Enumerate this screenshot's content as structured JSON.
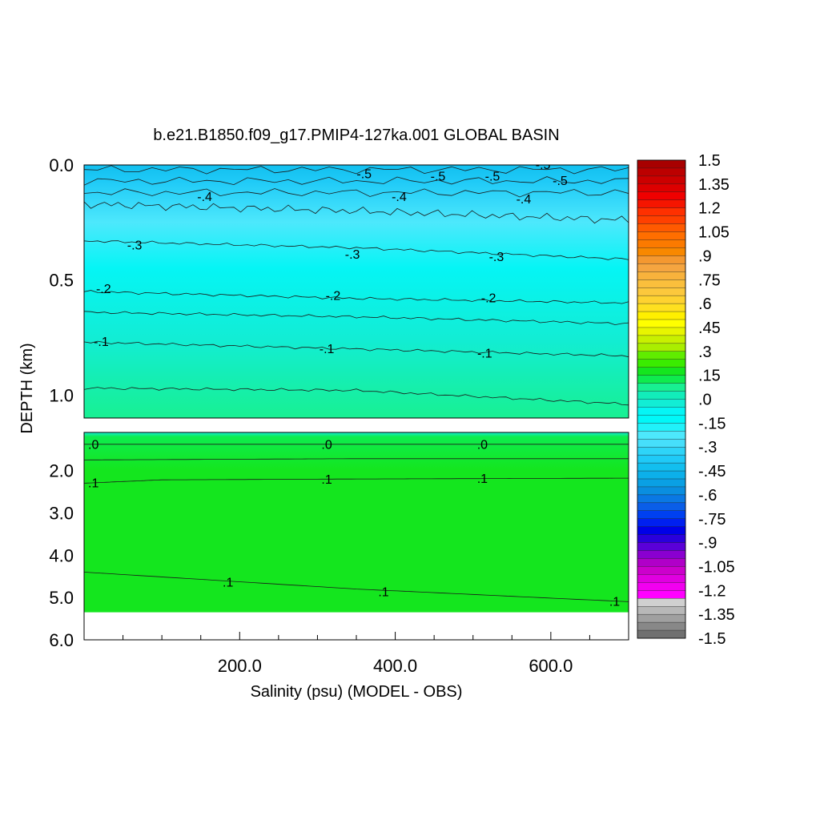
{
  "chart_data": {
    "type": "heatmap",
    "title": "b.e21.B1850.f09_g17.PMIP4-127ka.001 GLOBAL BASIN",
    "xlabel": "Salinity (psu) (MODEL - OBS)",
    "ylabel": "DEPTH (km)",
    "xlim": [
      0,
      700
    ],
    "x_ticks": [
      200,
      400,
      600
    ],
    "x_tick_labels": [
      "200.0",
      "400.0",
      "600.0"
    ],
    "upper_panel": {
      "ylim": [
        0,
        1.1
      ],
      "y_ticks": [
        0,
        0.5,
        1.0
      ],
      "y_tick_labels": [
        "0.0",
        "0.5",
        "1.0"
      ]
    },
    "lower_panel": {
      "ylim": [
        1.1,
        6.0
      ],
      "y_ticks": [
        2,
        3,
        4,
        5,
        6
      ],
      "y_tick_labels": [
        "2.0",
        "3.0",
        "4.0",
        "5.0",
        "6.0"
      ],
      "data_bottom_km": 5.35
    },
    "contours": [
      {
        "label": "-.5",
        "level": -0.5,
        "panel": "upper",
        "points": [
          [
            0,
            0.02
          ],
          [
            700,
            0.02
          ]
        ],
        "label_at": [
          [
            360,
            0.04
          ],
          [
            455,
            0.05
          ],
          [
            525,
            0.05
          ],
          [
            590,
            0.0
          ]
        ]
      },
      {
        "label": "-.5",
        "level": -0.5,
        "panel": "upper",
        "points": [
          [
            0,
            0.07
          ],
          [
            700,
            0.07
          ]
        ],
        "label_at": [
          [
            612,
            0.07
          ]
        ]
      },
      {
        "label": "-.4",
        "level": -0.4,
        "panel": "upper",
        "points": [
          [
            0,
            0.12
          ],
          [
            700,
            0.12
          ]
        ],
        "label_at": [
          [
            155,
            0.14
          ],
          [
            405,
            0.14
          ],
          [
            565,
            0.15
          ]
        ]
      },
      {
        "label": "-.4",
        "level": -0.4,
        "panel": "upper",
        "points": [
          [
            0,
            0.17
          ],
          [
            350,
            0.2
          ],
          [
            700,
            0.24
          ]
        ],
        "label_at": []
      },
      {
        "label": "-.3",
        "level": -0.3,
        "panel": "upper",
        "points": [
          [
            0,
            0.33
          ],
          [
            350,
            0.36
          ],
          [
            700,
            0.41
          ]
        ],
        "label_at": [
          [
            65,
            0.35
          ],
          [
            345,
            0.39
          ],
          [
            530,
            0.4
          ]
        ]
      },
      {
        "label": "-.2",
        "level": -0.2,
        "panel": "upper",
        "points": [
          [
            0,
            0.55
          ],
          [
            350,
            0.58
          ],
          [
            700,
            0.6
          ]
        ],
        "label_at": [
          [
            25,
            0.54
          ],
          [
            320,
            0.57
          ],
          [
            520,
            0.58
          ]
        ]
      },
      {
        "label": "-.2",
        "level": -0.2,
        "panel": "upper",
        "points": [
          [
            0,
            0.64
          ],
          [
            350,
            0.66
          ],
          [
            700,
            0.69
          ]
        ],
        "label_at": []
      },
      {
        "label": "-.1",
        "level": -0.1,
        "panel": "upper",
        "points": [
          [
            0,
            0.77
          ],
          [
            350,
            0.8
          ],
          [
            700,
            0.83
          ]
        ],
        "label_at": [
          [
            22,
            0.77
          ],
          [
            312,
            0.8
          ],
          [
            515,
            0.82
          ]
        ]
      },
      {
        "label": "0",
        "level": 0.0,
        "panel": "upper",
        "points": [
          [
            0,
            0.97
          ],
          [
            350,
            0.98
          ],
          [
            700,
            1.04
          ]
        ],
        "label_at": []
      },
      {
        "label": ".0",
        "level": 0.0,
        "panel": "lower",
        "points": [
          [
            0,
            1.38
          ],
          [
            700,
            1.38
          ]
        ],
        "label_at": [
          [
            12,
            1.39
          ],
          [
            312,
            1.39
          ],
          [
            512,
            1.39
          ]
        ]
      },
      {
        "label": ".0",
        "level": 0.0,
        "panel": "lower",
        "points": [
          [
            0,
            1.75
          ],
          [
            350,
            1.72
          ],
          [
            700,
            1.72
          ]
        ],
        "label_at": []
      },
      {
        "label": ".1",
        "level": 0.1,
        "panel": "lower",
        "points": [
          [
            0,
            2.3
          ],
          [
            100,
            2.22
          ],
          [
            350,
            2.2
          ],
          [
            700,
            2.18
          ]
        ],
        "label_at": [
          [
            12,
            2.3
          ],
          [
            312,
            2.22
          ],
          [
            512,
            2.2
          ]
        ]
      },
      {
        "label": ".1",
        "level": 0.1,
        "panel": "lower",
        "points": [
          [
            0,
            4.4
          ],
          [
            350,
            4.8
          ],
          [
            700,
            5.1
          ]
        ],
        "label_at": [
          [
            185,
            4.65
          ],
          [
            385,
            4.87
          ],
          [
            682,
            5.1
          ]
        ]
      }
    ],
    "fill_gradient": [
      {
        "depth": 0.0,
        "color": "#12bfef"
      },
      {
        "depth": 0.07,
        "color": "#1fcaf7"
      },
      {
        "depth": 0.25,
        "color": "#4de8fc"
      },
      {
        "depth": 0.45,
        "color": "#05f5f5"
      },
      {
        "depth": 0.75,
        "color": "#12edd5"
      },
      {
        "depth": 1.1,
        "color": "#18f092"
      },
      {
        "depth": 1.2,
        "color": "#0eec4e"
      },
      {
        "depth": 2.0,
        "color": "#14e61e"
      },
      {
        "depth": 6.0,
        "color": "#14e61e"
      }
    ],
    "colorbar": {
      "labels": [
        "1.5",
        "1.35",
        "1.2",
        "1.05",
        ".9",
        ".75",
        ".6",
        ".45",
        ".3",
        ".15",
        ".0",
        "-.15",
        "-.3",
        "-.45",
        "-.6",
        "-.75",
        "-.9",
        "-1.05",
        "-1.2",
        "-1.35",
        "-1.5"
      ],
      "colors": [
        "#a80000",
        "#bc0000",
        "#cc0000",
        "#dd0000",
        "#f00000",
        "#f51500",
        "#ff3000",
        "#ff4000",
        "#ff5a00",
        "#ff6e00",
        "#fc7a00",
        "#f88800",
        "#f49830",
        "#f5a540",
        "#f8b23c",
        "#fabf3c",
        "#fcc83c",
        "#fed230",
        "#fee020",
        "#ffef00",
        "#ffff00",
        "#e8f500",
        "#c8f000",
        "#aaee00",
        "#60ec00",
        "#3aec00",
        "#14e61e",
        "#0eec4e",
        "#18f092",
        "#12edba",
        "#12edd5",
        "#05f5f5",
        "#00f8f8",
        "#20f2fa",
        "#4de8fc",
        "#46dffb",
        "#2ed4f8",
        "#1fcaf7",
        "#12bfef",
        "#0cb0ea",
        "#0aa0e4",
        "#0a8ee0",
        "#0a78e4",
        "#0a5ee8",
        "#0040f0",
        "#0020f0",
        "#0000e8",
        "#2a00dc",
        "#5a00d8",
        "#8a00d0",
        "#b000c8",
        "#cc00cc",
        "#e000e0",
        "#f200f0",
        "#ff00ff",
        "#d0d0d0",
        "#b8b8b8",
        "#a0a0a0",
        "#888888",
        "#707070"
      ]
    }
  }
}
